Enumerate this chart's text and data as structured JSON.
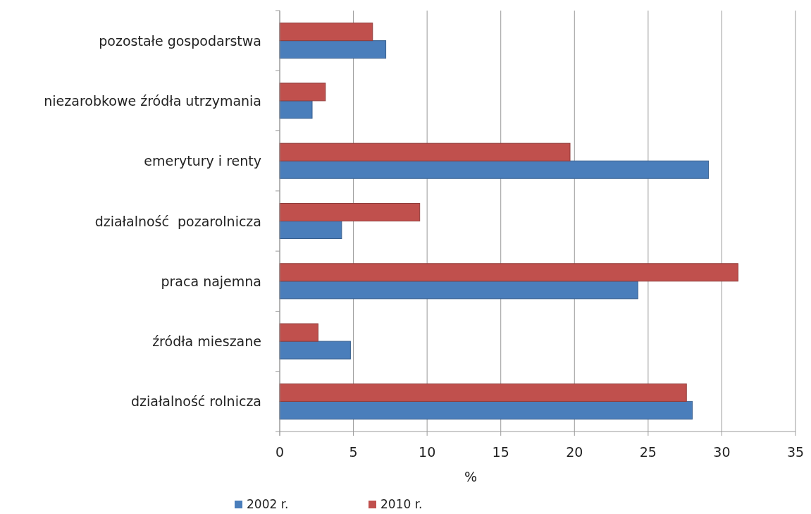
{
  "chart_data": {
    "type": "bar",
    "orientation": "horizontal",
    "xlabel": "%",
    "categories": [
      "pozostałe gospodarstwa",
      "niezarobkowe źródła utrzymania",
      "emerytury i renty",
      "działalność  pozarolnicza",
      "praca najemna",
      "źródła mieszane",
      "działalność rolnicza"
    ],
    "series": [
      {
        "name": "2002 r.",
        "color": "#4a7ebb",
        "values": [
          7.2,
          2.2,
          29.1,
          4.2,
          24.3,
          4.8,
          28.0
        ]
      },
      {
        "name": "2010 r.",
        "color": "#c0504d",
        "values": [
          6.3,
          3.1,
          19.7,
          9.5,
          31.1,
          2.6,
          27.6
        ]
      }
    ],
    "xlim": [
      0,
      35
    ],
    "xticks": [
      0,
      5,
      10,
      15,
      20,
      25,
      30,
      35
    ],
    "grid": "x",
    "legend": "bottom"
  }
}
